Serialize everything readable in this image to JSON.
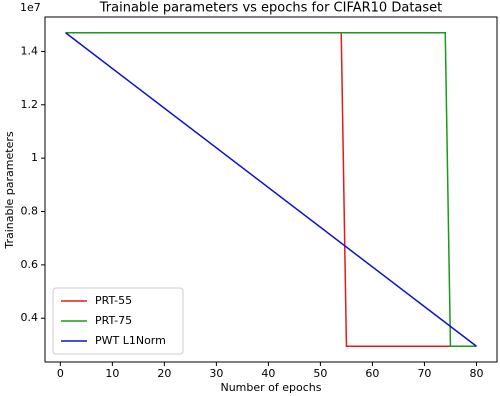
{
  "chart_data": {
    "type": "line",
    "title": "Trainable parameters vs epochs for CIFAR10 Dataset",
    "x_label": "Number of epochs",
    "y_label": "Trainable parameters",
    "y_offset_label": "1e7",
    "xlim": [
      -2.95,
      83.95
    ],
    "xticks": [
      0,
      10,
      20,
      30,
      40,
      50,
      60,
      70,
      80
    ],
    "ylim": [
      0.236,
      1.529
    ],
    "yticks": [
      0.4,
      0.6,
      0.8,
      1.0,
      1.2,
      1.4
    ],
    "legend": "lower left",
    "series": [
      {
        "name": "PRT-55",
        "color": "#e41a1c",
        "x": [
          1,
          54,
          55,
          80
        ],
        "values": [
          1.47,
          1.47,
          0.295,
          0.295
        ]
      },
      {
        "name": "PRT-75",
        "color": "#1a9a1a",
        "x": [
          1,
          74,
          75,
          80
        ],
        "values": [
          1.47,
          1.47,
          0.295,
          0.295
        ]
      },
      {
        "name": "PWT L1Norm",
        "color": "#1010d0",
        "x": [
          1,
          80
        ],
        "values": [
          1.47,
          0.295
        ]
      }
    ]
  }
}
